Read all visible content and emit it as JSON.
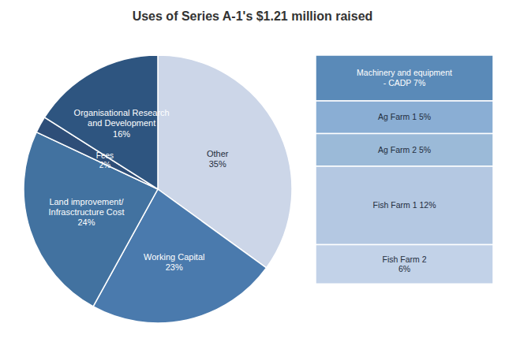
{
  "chart_data": [
    {
      "type": "pie",
      "title": "Uses of Series A-1's $1.21 million raised",
      "categories": [
        "Other\n35%",
        "Working Capital\n23%",
        "Land improvement/\nInfrasctructure Cost\n24%",
        "Fees\n2%",
        "Organisational Research\nand Development\n16%"
      ],
      "values": [
        35,
        23,
        24,
        2,
        16
      ],
      "colors": [
        "#ccd6e8",
        "#4a7aad",
        "#4272a0",
        "#2e4e78",
        "#2e5580"
      ]
    },
    {
      "type": "bar",
      "stacked": true,
      "categories": [
        "Machinery and equipment\n- CADP 7%",
        "Ag Farm 1 5%",
        "Ag Farm 2 5%",
        "Fish Farm 1 12%",
        "Fish Farm 2\n6%"
      ],
      "values": [
        7,
        5,
        5,
        12,
        6
      ],
      "colors": [
        "#5a8ab8",
        "#8aaed4",
        "#9bbad8",
        "#b4c8e2",
        "#c2d2e8"
      ],
      "ylim": [
        0,
        35
      ],
      "tick_labels": false
    }
  ]
}
